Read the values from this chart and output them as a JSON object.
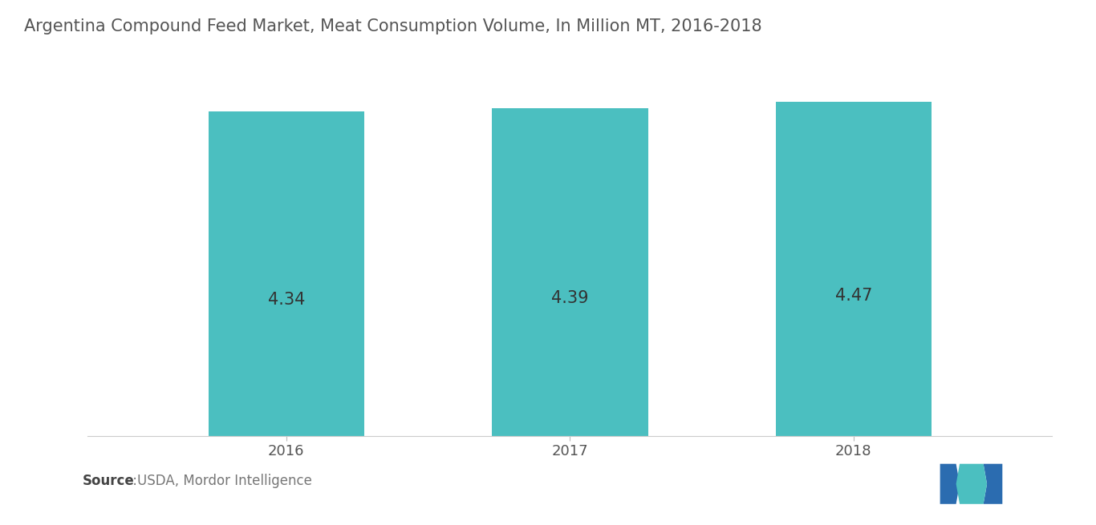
{
  "title": "Argentina Compound Feed Market, Meat Consumption Volume, In Million MT, 2016-2018",
  "categories": [
    "2016",
    "2017",
    "2018"
  ],
  "values": [
    4.34,
    4.39,
    4.47
  ],
  "bar_color": "#4BBFC0",
  "label_color": "#333333",
  "label_fontsize": 15,
  "title_fontsize": 15,
  "title_color": "#555555",
  "xtick_fontsize": 13,
  "xtick_color": "#555555",
  "source_bold": "Source",
  "source_normal": " :USDA, Mordor Intelligence",
  "source_fontsize": 12,
  "background_color": "#ffffff",
  "ylim": [
    0,
    4.85
  ],
  "bar_width": 0.55
}
